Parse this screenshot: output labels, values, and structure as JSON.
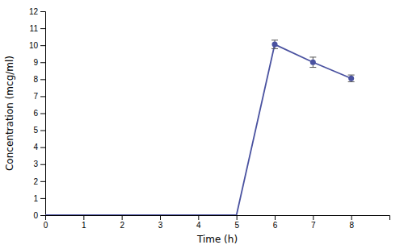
{
  "chart_data": {
    "type": "line",
    "xlabel": "Time (h)",
    "ylabel": "Concentration (mcg/ml)",
    "x": [
      0,
      1,
      2,
      3,
      4,
      5,
      6,
      7,
      8
    ],
    "values": [
      0,
      0,
      0,
      0,
      0,
      0,
      10.05,
      9.0,
      8.05
    ],
    "errors": [
      0,
      0,
      0,
      0,
      0,
      0,
      0.25,
      0.3,
      0.2
    ],
    "color": "#4a52a0",
    "marker": "circle",
    "xlim": [
      0,
      9
    ],
    "ylim": [
      0,
      12
    ],
    "xticks": [
      0,
      1,
      2,
      3,
      4,
      5,
      6,
      7,
      8
    ],
    "yticks": [
      0,
      1,
      2,
      3,
      4,
      5,
      6,
      7,
      8,
      9,
      10,
      11,
      12
    ],
    "grid": false
  }
}
